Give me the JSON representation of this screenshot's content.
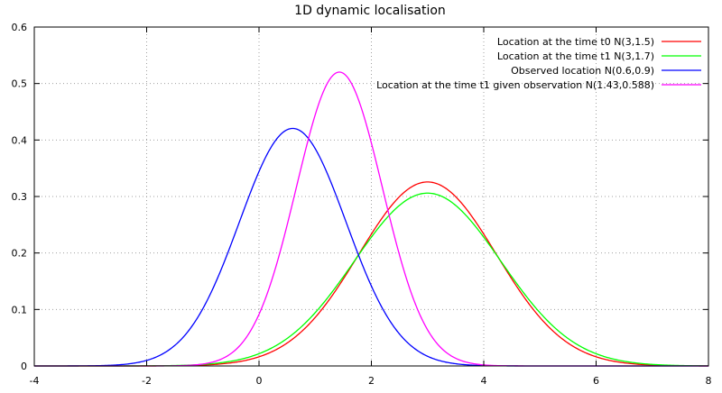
{
  "chart_data": {
    "type": "line",
    "title": "1D dynamic localisation",
    "xlabel": "",
    "ylabel": "",
    "xlim": [
      -4,
      8
    ],
    "ylim": [
      0,
      0.6
    ],
    "x_ticks": [
      -4,
      -2,
      0,
      2,
      4,
      6,
      8
    ],
    "x_tick_labels": [
      "-4",
      "-2",
      "0",
      "2",
      "4",
      "6",
      "8"
    ],
    "y_ticks": [
      0,
      0.1,
      0.2,
      0.3,
      0.4,
      0.5,
      0.6
    ],
    "y_tick_labels": [
      "0",
      "0.1",
      "0.2",
      "0.3",
      "0.4",
      "0.5",
      "0.6"
    ],
    "grid": true,
    "legend_position": "top-right",
    "series": [
      {
        "name": "Location at the time t0  N(3,1.5)",
        "distribution": "normal",
        "mean": 3,
        "variance": 1.5,
        "color": "#ff0000"
      },
      {
        "name": "Location at the time t1  N(3,1.7)",
        "distribution": "normal",
        "mean": 3,
        "variance": 1.7,
        "color": "#00ff00"
      },
      {
        "name": "Observed location  N(0.6,0.9)",
        "distribution": "normal",
        "mean": 0.6,
        "variance": 0.9,
        "color": "#0000ff"
      },
      {
        "name": "Location at the time t1 given observation  N(1.43,0.588)",
        "distribution": "normal",
        "mean": 1.43,
        "variance": 0.588,
        "color": "#ff00ff"
      }
    ]
  }
}
